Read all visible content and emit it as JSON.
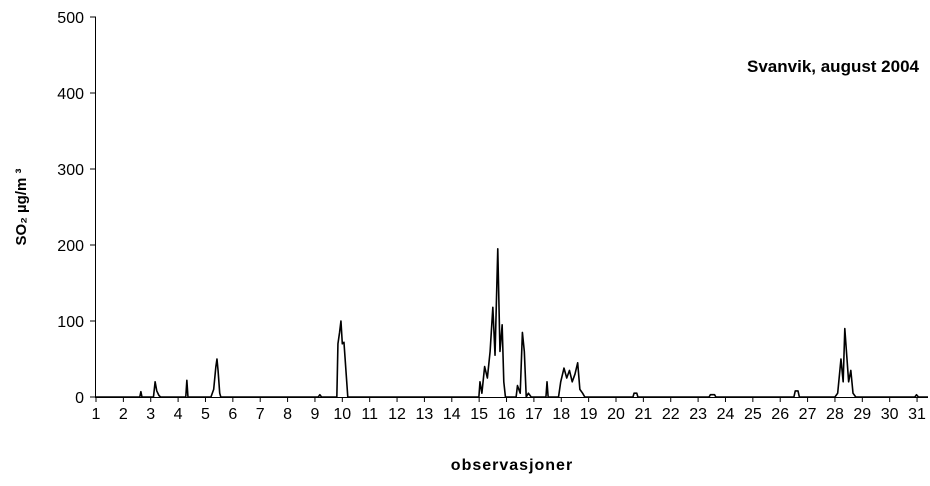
{
  "chart_data": {
    "type": "line",
    "title": "Svanvik, august 2004",
    "y_label": "SO₂ µg/m ³",
    "x_label": "observasjoner",
    "x": [
      1,
      2.6,
      2.64,
      2.68,
      3.1,
      3.16,
      3.22,
      3.3,
      3.36,
      4.28,
      4.32,
      4.36,
      5.2,
      5.3,
      5.38,
      5.42,
      5.46,
      5.52,
      5.56,
      9.12,
      9.18,
      9.24,
      9.8,
      9.84,
      9.9,
      9.95,
      10,
      10.06,
      10.2,
      14.99,
      15.03,
      15.1,
      15.2,
      15.3,
      15.4,
      15.5,
      15.58,
      15.68,
      15.76,
      15.84,
      15.9,
      15.96,
      16.35,
      16.4,
      16.5,
      16.58,
      16.65,
      16.72,
      16.8,
      16.9,
      17.44,
      17.48,
      17.52,
      17.9,
      17.98,
      18.1,
      18.2,
      18.3,
      18.4,
      18.5,
      18.6,
      18.68,
      18.78,
      18.86,
      20.62,
      20.66,
      20.76,
      20.8,
      23.4,
      23.45,
      23.6,
      23.65,
      26.5,
      26.55,
      26.65,
      26.7,
      28,
      28.1,
      28.22,
      28.3,
      28.36,
      28.44,
      28.5,
      28.58,
      28.66,
      28.76,
      30.92,
      30.98,
      31.05,
      31.4
    ],
    "series": [
      {
        "color": "#000000",
        "values": [
          0,
          0,
          7,
          0,
          0,
          20,
          8,
          2,
          0,
          0,
          22,
          0,
          0,
          10,
          40,
          50,
          35,
          5,
          0,
          0,
          3,
          0,
          0,
          70,
          85,
          100,
          70,
          72,
          0,
          0,
          20,
          5,
          40,
          25,
          60,
          118,
          55,
          195,
          60,
          95,
          20,
          0,
          0,
          15,
          5,
          85,
          60,
          0,
          5,
          0,
          0,
          20,
          0,
          0,
          20,
          38,
          25,
          35,
          20,
          30,
          45,
          10,
          5,
          0,
          0,
          5,
          5,
          0,
          0,
          3,
          3,
          0,
          0,
          8,
          8,
          0,
          0,
          5,
          50,
          20,
          90,
          50,
          20,
          35,
          5,
          0,
          0,
          3,
          0,
          0
        ]
      }
    ],
    "xlim": [
      1,
      31.4
    ],
    "xticks": [
      1,
      2,
      3,
      4,
      5,
      6,
      7,
      8,
      9,
      10,
      11,
      12,
      13,
      14,
      15,
      16,
      17,
      18,
      19,
      20,
      21,
      22,
      23,
      24,
      25,
      26,
      27,
      28,
      29,
      30,
      31
    ],
    "ylim": [
      0,
      500
    ],
    "yticks": [
      0,
      100,
      200,
      300,
      400,
      500
    ],
    "grid": false
  }
}
